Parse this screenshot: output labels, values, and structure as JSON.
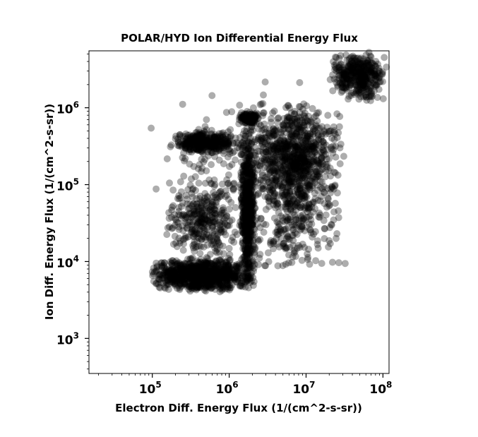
{
  "chart_data": {
    "type": "scatter",
    "title": "POLAR/HYD  Ion Differential Energy Flux",
    "xlabel": "Electron Diff. Energy Flux (1/(cm^2-s-sr))",
    "ylabel": "Ion Diff. Energy Flux (1/(cm^2-s-sr))",
    "x_scale": "log",
    "y_scale": "log",
    "xlim": [
      15000,
      120000000
    ],
    "ylim": [
      350,
      5500000
    ],
    "x_ticks": [
      {
        "base": "10",
        "exp": "5",
        "value": 100000
      },
      {
        "base": "10",
        "exp": "6",
        "value": 1000000
      },
      {
        "base": "10",
        "exp": "7",
        "value": 10000000
      },
      {
        "base": "10",
        "exp": "8",
        "value": 100000000
      }
    ],
    "y_ticks": [
      {
        "base": "10",
        "exp": "3",
        "value": 1000
      },
      {
        "base": "10",
        "exp": "4",
        "value": 10000
      },
      {
        "base": "10",
        "exp": "5",
        "value": 100000
      },
      {
        "base": "10",
        "exp": "6",
        "value": 1000000
      }
    ],
    "grid": false,
    "legend": "none",
    "marker_color": "#000000",
    "marker_opacity": 0.32,
    "point_clusters": [
      {
        "x_range": [
          90000,
          2000000
        ],
        "y_range": [
          4000,
          11000
        ],
        "count": 900
      },
      {
        "x_range": [
          1400000,
          2200000
        ],
        "y_range": [
          4000,
          600000
        ],
        "count": 600
      },
      {
        "x_range": [
          1800000,
          30000000
        ],
        "y_range": [
          60000,
          1200000
        ],
        "count": 700
      },
      {
        "x_range": [
          20000000,
          120000000
        ],
        "y_range": [
          1200000,
          5500000
        ],
        "count": 400
      },
      {
        "x_range": [
          170000,
          1500000
        ],
        "y_range": [
          250000,
          500000
        ],
        "count": 350
      },
      {
        "x_range": [
          1300000,
          2500000
        ],
        "y_range": [
          600000,
          900000
        ],
        "count": 120
      },
      {
        "x_range": [
          150000,
          1200000
        ],
        "y_range": [
          10000,
          120000
        ],
        "count": 300
      },
      {
        "x_range": [
          2000000,
          30000000
        ],
        "y_range": [
          7000,
          400000
        ],
        "count": 350
      },
      {
        "x_range": [
          90000,
          40000000
        ],
        "y_range": [
          5000,
          2500000
        ],
        "count": 300
      }
    ]
  }
}
